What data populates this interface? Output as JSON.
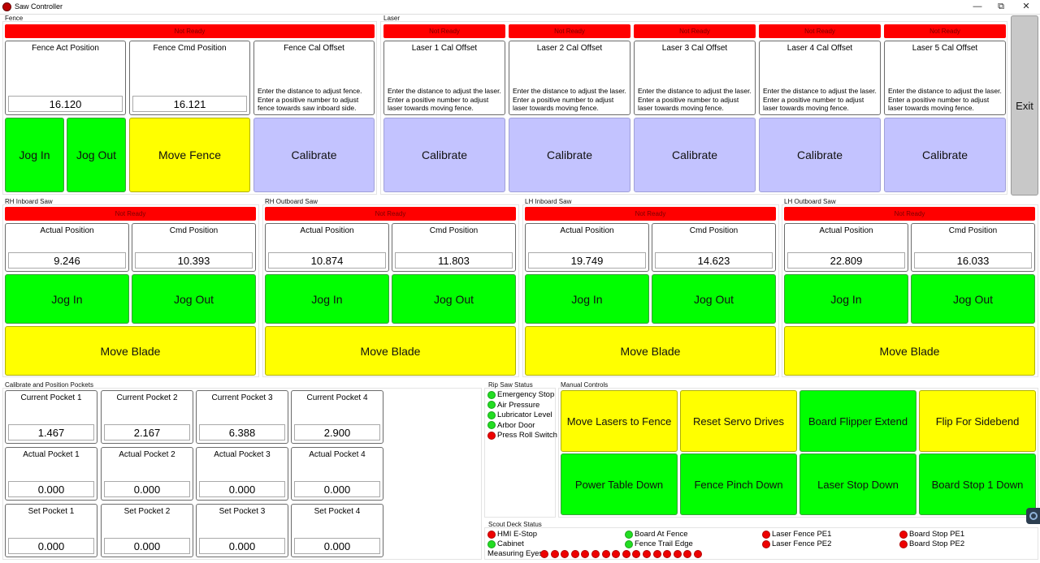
{
  "window": {
    "title": "Saw Controller",
    "minimize": "—",
    "restore": "⧉",
    "close": "✕"
  },
  "fence": {
    "group_label": "Fence",
    "status": "Not Ready",
    "act_title": "Fence Act Position",
    "act_value": "16.120",
    "cmd_title": "Fence Cmd Position",
    "cmd_value": "16.121",
    "cal_title": "Fence Cal Offset",
    "cal_desc": "Enter the distance to adjust fence. Enter a positive number to adjust fence towards saw inboard side.",
    "jog_in": "Jog In",
    "jog_out": "Jog Out",
    "move": "Move Fence",
    "calibrate": "Calibrate"
  },
  "laser": {
    "group_label": "Laser",
    "items": [
      {
        "status": "Not Ready",
        "title": "Laser 1 Cal Offset",
        "desc": "Enter the distance to adjust the laser. Enter a positive number to adjust laser towards moving fence.",
        "calibrate": "Calibrate"
      },
      {
        "status": "Not Ready",
        "title": "Laser 2 Cal Offset",
        "desc": "Enter the distance to adjust the laser. Enter a positive number to adjust laser towards moving fence.",
        "calibrate": "Calibrate"
      },
      {
        "status": "Not Ready",
        "title": "Laser 3 Cal Offset",
        "desc": "Enter the distance to adjust the laser. Enter a positive number to adjust laser towards moving fence.",
        "calibrate": "Calibrate"
      },
      {
        "status": "Not Ready",
        "title": "Laser 4 Cal Offset",
        "desc": "Enter the distance to adjust the laser. Enter a positive number to adjust laser towards moving fence.",
        "calibrate": "Calibrate"
      },
      {
        "status": "Not Ready",
        "title": "Laser 5 Cal Offset",
        "desc": "Enter the distance to adjust the laser. Enter a positive number to adjust laser towards moving fence.",
        "calibrate": "Calibrate"
      }
    ]
  },
  "exit_label": "Exit",
  "saws": [
    {
      "label": "RH Inboard Saw",
      "status": "Not Ready",
      "act_title": "Actual Position",
      "act_value": "9.246",
      "cmd_title": "Cmd Position",
      "cmd_value": "10.393",
      "jog_in": "Jog In",
      "jog_out": "Jog Out",
      "move": "Move Blade"
    },
    {
      "label": "RH Outboard Saw",
      "status": "Not Ready",
      "act_title": "Actual Position",
      "act_value": "10.874",
      "cmd_title": "Cmd Position",
      "cmd_value": "11.803",
      "jog_in": "Jog In",
      "jog_out": "Jog Out",
      "move": "Move Blade"
    },
    {
      "label": "LH Inboard Saw",
      "status": "Not Ready",
      "act_title": "Actual Position",
      "act_value": "19.749",
      "cmd_title": "Cmd Position",
      "cmd_value": "14.623",
      "jog_in": "Jog In",
      "jog_out": "Jog Out",
      "move": "Move Blade"
    },
    {
      "label": "LH Outboard Saw",
      "status": "Not Ready",
      "act_title": "Actual Position",
      "act_value": "22.809",
      "cmd_title": "Cmd Position",
      "cmd_value": "16.033",
      "jog_in": "Jog In",
      "jog_out": "Jog Out",
      "move": "Move Blade"
    }
  ],
  "pockets": {
    "group_label": "Calibrate and Position Pockets",
    "rows": [
      [
        {
          "title": "Current Pocket 1",
          "value": "1.467"
        },
        {
          "title": "Current Pocket 2",
          "value": "2.167"
        },
        {
          "title": "Current Pocket 3",
          "value": "6.388"
        },
        {
          "title": "Current Pocket 4",
          "value": "2.900"
        }
      ],
      [
        {
          "title": "Actual Pocket 1",
          "value": "0.000"
        },
        {
          "title": "Actual Pocket 2",
          "value": "0.000"
        },
        {
          "title": "Actual Pocket 3",
          "value": "0.000"
        },
        {
          "title": "Actual Pocket 4",
          "value": "0.000"
        }
      ],
      [
        {
          "title": "Set Pocket 1",
          "value": "0.000"
        },
        {
          "title": "Set Pocket 2",
          "value": "0.000"
        },
        {
          "title": "Set Pocket 3",
          "value": "0.000"
        },
        {
          "title": "Set Pocket 4",
          "value": "0.000"
        }
      ]
    ]
  },
  "rip_saw": {
    "group_label": "Rip Saw Status",
    "items": [
      {
        "label": "Emergency Stop",
        "color": "#22dd22"
      },
      {
        "label": "Air Pressure",
        "color": "#22dd22"
      },
      {
        "label": "Lubricator Level",
        "color": "#22dd22"
      },
      {
        "label": "Arbor Door",
        "color": "#22dd22"
      },
      {
        "label": "Press Roll Switch",
        "color": "#ee0000"
      }
    ]
  },
  "manual": {
    "group_label": "Manual Controls",
    "buttons": [
      {
        "label": "Move Lasers to Fence",
        "color": "#ffff00"
      },
      {
        "label": "Reset Servo Drives",
        "color": "#ffff00"
      },
      {
        "label": "Board Flipper Extend",
        "color": "#00ff00"
      },
      {
        "label": "Flip For Sidebend",
        "color": "#ffff00"
      },
      {
        "label": "Power Table Down",
        "color": "#00ff00"
      },
      {
        "label": "Fence Pinch Down",
        "color": "#00ff00"
      },
      {
        "label": "Laser Stop Down",
        "color": "#00ff00"
      },
      {
        "label": "Board Stop 1 Down",
        "color": "#00ff00"
      }
    ]
  },
  "scout": {
    "group_label": "Scout Deck Status",
    "items": [
      {
        "label": "HMI E-Stop",
        "color": "#ee0000"
      },
      {
        "label": "Cabinet",
        "color": "#22dd22"
      },
      {
        "label": "Board At Fence",
        "color": "#22dd22"
      },
      {
        "label": "Fence Trail Edge",
        "color": "#22dd22"
      },
      {
        "label": "Laser Fence PE1",
        "color": "#ee0000"
      },
      {
        "label": "Laser Fence PE2",
        "color": "#ee0000"
      },
      {
        "label": "Board Stop PE1",
        "color": "#ee0000"
      },
      {
        "label": "Board Stop PE2",
        "color": "#ee0000"
      }
    ],
    "measuring_label": "Measuring Eyes",
    "eye_count": 16,
    "eye_color": "#ee0000"
  },
  "colors": {
    "not_ready": "#ff0000",
    "green": "#00ff00",
    "yellow": "#ffff00",
    "calibrate": "#c3c3ff"
  }
}
